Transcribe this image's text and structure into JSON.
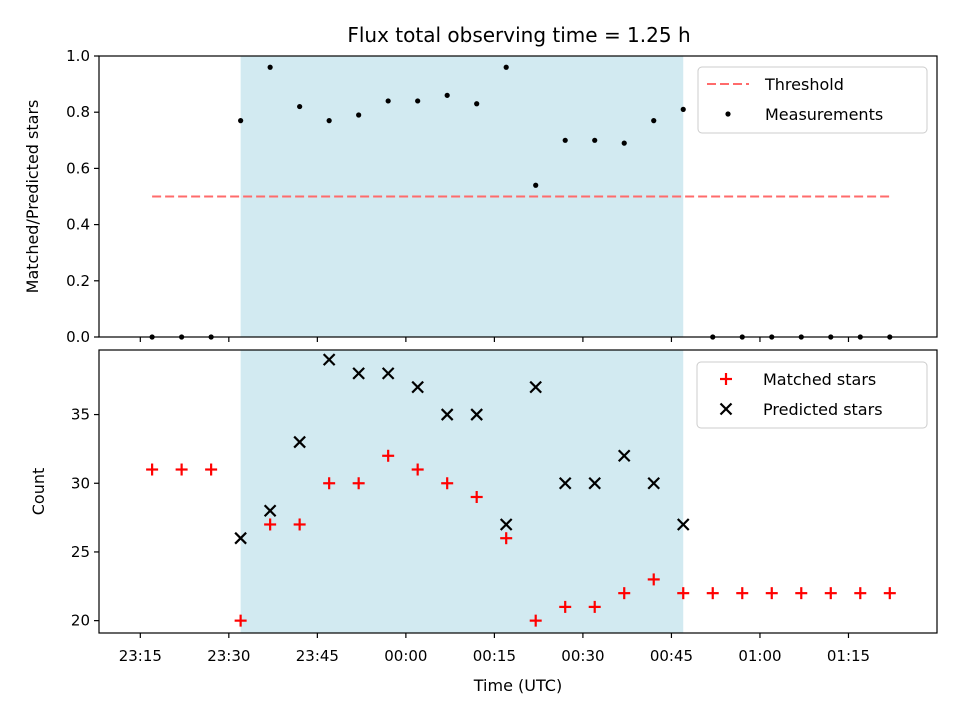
{
  "figure": {
    "title": "Flux total observing time = 1.25 h"
  },
  "chart_data": [
    {
      "type": "scatter",
      "ylabel": "Matched/Predicted stars",
      "xlabel": "",
      "ylim": [
        0,
        1.0
      ],
      "yticks": [
        0.0,
        0.2,
        0.4,
        0.6,
        0.8,
        1.0
      ],
      "yticklabels": [
        "0.0",
        "0.2",
        "0.4",
        "0.6",
        "0.8",
        "1.0"
      ],
      "grid": false,
      "legend_placement": "upper-right",
      "shaded_span": {
        "from": "23:32",
        "to": "00:47",
        "color": "#add8e6"
      },
      "threshold": {
        "name": "Threshold",
        "value": 0.5,
        "from": "23:17",
        "to": "01:22",
        "color": "#ff6b6b",
        "style": "dashed"
      },
      "series": [
        {
          "name": "Measurements",
          "marker": "dot",
          "color": "#000000",
          "x": [
            "23:17",
            "23:22",
            "23:27",
            "23:32",
            "23:37",
            "23:42",
            "23:47",
            "23:52",
            "23:57",
            "00:02",
            "00:07",
            "00:12",
            "00:17",
            "00:22",
            "00:27",
            "00:32",
            "00:37",
            "00:42",
            "00:47",
            "00:52",
            "00:57",
            "01:02",
            "01:07",
            "01:12",
            "01:17",
            "01:22"
          ],
          "values": [
            0,
            0,
            0,
            0.77,
            0.96,
            0.82,
            0.77,
            0.79,
            0.84,
            0.84,
            0.86,
            0.83,
            0.96,
            0.54,
            0.7,
            0.7,
            0.69,
            0.77,
            0.81,
            0,
            0,
            0,
            0,
            0,
            0,
            0
          ]
        }
      ]
    },
    {
      "type": "scatter",
      "ylabel": "Count",
      "xlabel": "Time (UTC)",
      "ylim": [
        19.1,
        39.7
      ],
      "yticks": [
        20,
        25,
        30,
        35
      ],
      "yticklabels": [
        "20",
        "25",
        "30",
        "35"
      ],
      "xticklabels": [
        "23:15",
        "23:30",
        "23:45",
        "00:00",
        "00:15",
        "00:30",
        "00:45",
        "01:00",
        "01:15"
      ],
      "grid": false,
      "legend_placement": "upper-right",
      "shaded_span": {
        "from": "23:32",
        "to": "00:47",
        "color": "#add8e6"
      },
      "series": [
        {
          "name": "Matched stars",
          "marker": "plus",
          "color": "#ff0000",
          "x": [
            "23:17",
            "23:22",
            "23:27",
            "23:32",
            "23:37",
            "23:42",
            "23:47",
            "23:52",
            "23:57",
            "00:02",
            "00:07",
            "00:12",
            "00:17",
            "00:22",
            "00:27",
            "00:32",
            "00:37",
            "00:42",
            "00:47",
            "00:52",
            "00:57",
            "01:02",
            "01:07",
            "01:12",
            "01:17",
            "01:22"
          ],
          "values": [
            31,
            31,
            31,
            20,
            27,
            27,
            30,
            30,
            32,
            31,
            30,
            29,
            26,
            20,
            21,
            21,
            22,
            23,
            22,
            22,
            22,
            22,
            22,
            22,
            22,
            22
          ]
        },
        {
          "name": "Predicted stars",
          "marker": "x",
          "color": "#000000",
          "x": [
            "23:32",
            "23:37",
            "23:42",
            "23:47",
            "23:52",
            "23:57",
            "00:02",
            "00:07",
            "00:12",
            "00:17",
            "00:22",
            "00:27",
            "00:32",
            "00:37",
            "00:42",
            "00:47"
          ],
          "values": [
            26,
            28,
            33,
            39,
            38,
            38,
            37,
            35,
            35,
            27,
            37,
            30,
            30,
            32,
            30,
            27
          ]
        }
      ]
    }
  ]
}
